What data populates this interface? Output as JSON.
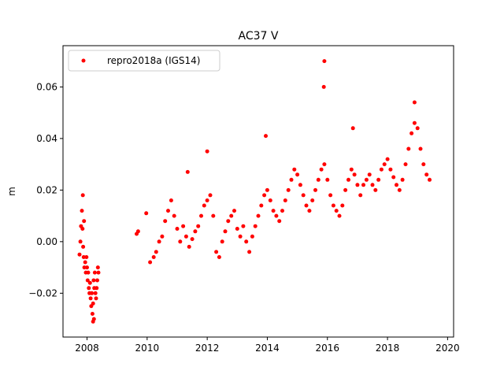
{
  "chart_data": {
    "type": "scatter",
    "title": "AC37 V",
    "xlabel": "",
    "ylabel": "m",
    "xlim": [
      2007.2,
      2020.2
    ],
    "ylim": [
      -0.037,
      0.076
    ],
    "xticks": [
      2008,
      2010,
      2012,
      2014,
      2016,
      2018,
      2020
    ],
    "yticks": [
      -0.02,
      0.0,
      0.02,
      0.04,
      0.06
    ],
    "ytick_labels": [
      "−0.02",
      "0.00",
      "0.02",
      "0.04",
      "0.06"
    ],
    "grid": false,
    "legend_position": "top-left",
    "series": [
      {
        "name": "repro2018a (IGS14)",
        "color": "#ff0000",
        "marker": "circle",
        "x": [
          2007.75,
          2007.78,
          2007.8,
          2007.83,
          2007.85,
          2007.87,
          2007.89,
          2007.91,
          2007.94,
          2007.96,
          2007.98,
          2008.0,
          2008.02,
          2008.04,
          2008.06,
          2008.08,
          2008.1,
          2008.12,
          2008.14,
          2008.16,
          2008.18,
          2008.2,
          2008.22,
          2008.24,
          2008.26,
          2008.28,
          2008.3,
          2008.32,
          2008.34,
          2008.36,
          2008.38,
          2007.86,
          2007.9,
          2008.2,
          2008.23,
          2009.65,
          2009.7,
          2009.97,
          2010.1,
          2010.22,
          2010.3,
          2010.4,
          2010.5,
          2010.6,
          2010.7,
          2010.8,
          2010.9,
          2011.0,
          2011.1,
          2011.2,
          2011.3,
          2011.4,
          2011.5,
          2011.6,
          2011.7,
          2011.8,
          2011.9,
          2012.0,
          2012.1,
          2012.2,
          2012.3,
          2012.4,
          2012.5,
          2012.6,
          2012.7,
          2012.8,
          2012.9,
          2013.0,
          2013.1,
          2013.2,
          2013.3,
          2013.4,
          2013.5,
          2013.6,
          2013.7,
          2013.8,
          2013.9,
          2014.0,
          2014.1,
          2014.2,
          2014.3,
          2014.4,
          2014.5,
          2014.6,
          2014.7,
          2014.8,
          2014.9,
          2015.0,
          2015.1,
          2015.2,
          2015.3,
          2015.4,
          2015.5,
          2015.6,
          2015.7,
          2015.8,
          2015.9,
          2016.0,
          2016.1,
          2016.2,
          2016.3,
          2016.4,
          2016.5,
          2016.6,
          2016.7,
          2016.8,
          2016.9,
          2017.0,
          2017.1,
          2017.2,
          2017.3,
          2017.4,
          2017.5,
          2017.6,
          2017.7,
          2017.8,
          2017.9,
          2018.0,
          2018.1,
          2018.2,
          2018.3,
          2018.4,
          2018.5,
          2018.6,
          2018.7,
          2018.8,
          2018.9,
          2019.0,
          2019.1,
          2019.2,
          2019.3,
          2019.4,
          2015.9,
          2015.88,
          2012.0,
          2013.95,
          2018.9,
          2016.85,
          2011.35
        ],
        "y": [
          -0.005,
          0.0,
          0.006,
          0.012,
          0.005,
          -0.002,
          -0.006,
          -0.01,
          -0.008,
          -0.012,
          -0.006,
          -0.01,
          -0.015,
          -0.012,
          -0.018,
          -0.02,
          -0.016,
          -0.022,
          -0.025,
          -0.02,
          -0.028,
          -0.024,
          -0.015,
          -0.018,
          -0.012,
          -0.02,
          -0.022,
          -0.018,
          -0.015,
          -0.01,
          -0.012,
          0.018,
          0.008,
          -0.031,
          -0.03,
          0.003,
          0.004,
          0.011,
          -0.008,
          -0.006,
          -0.004,
          0.0,
          0.002,
          0.008,
          0.012,
          0.016,
          0.01,
          0.005,
          0.0,
          0.006,
          0.002,
          -0.002,
          0.001,
          0.004,
          0.006,
          0.01,
          0.014,
          0.016,
          0.018,
          0.01,
          -0.004,
          -0.006,
          0.0,
          0.004,
          0.008,
          0.01,
          0.012,
          0.005,
          0.002,
          0.006,
          0.0,
          -0.004,
          0.002,
          0.006,
          0.01,
          0.014,
          0.018,
          0.02,
          0.016,
          0.012,
          0.01,
          0.008,
          0.012,
          0.016,
          0.02,
          0.024,
          0.028,
          0.026,
          0.022,
          0.018,
          0.014,
          0.012,
          0.016,
          0.02,
          0.024,
          0.028,
          0.03,
          0.024,
          0.018,
          0.014,
          0.012,
          0.01,
          0.014,
          0.02,
          0.024,
          0.028,
          0.026,
          0.022,
          0.018,
          0.022,
          0.024,
          0.026,
          0.022,
          0.02,
          0.024,
          0.028,
          0.03,
          0.032,
          0.028,
          0.025,
          0.022,
          0.02,
          0.024,
          0.03,
          0.036,
          0.042,
          0.046,
          0.044,
          0.036,
          0.03,
          0.026,
          0.024,
          0.07,
          0.06,
          0.035,
          0.041,
          0.054,
          0.044,
          0.027
        ]
      }
    ]
  }
}
